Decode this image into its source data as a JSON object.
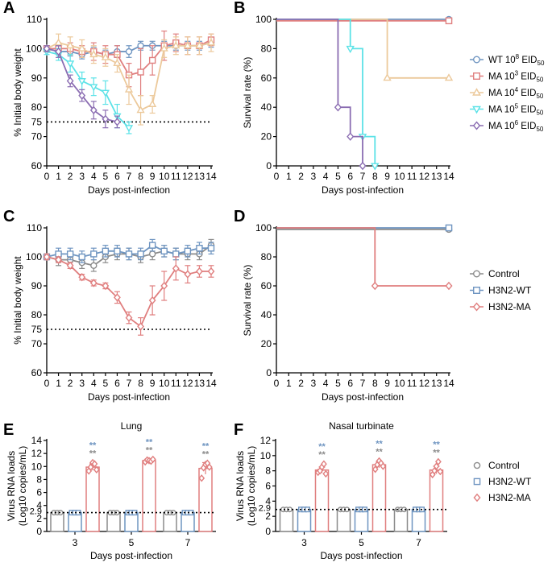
{
  "chart_data": [
    {
      "panel": "A",
      "type": "line",
      "xlabel": "Days post-infection",
      "ylabel": "% Initial body weight",
      "xlim": [
        0,
        14
      ],
      "ylim": [
        60,
        110
      ],
      "xticks": [
        "0",
        "1",
        "2",
        "3",
        "4",
        "5",
        "6",
        "7",
        "8",
        "9",
        "10",
        "11",
        "12",
        "13",
        "14"
      ],
      "yticks": [
        "60",
        "70",
        "80",
        "90",
        "100",
        "110"
      ],
      "reference_line": {
        "y": 75,
        "label": "75"
      },
      "series": [
        {
          "name": "WT 10^8 EID50",
          "color": "#6f95c1",
          "marker": "circle",
          "x": [
            0,
            1,
            2,
            3,
            4,
            5,
            6,
            7,
            8,
            9,
            10,
            11,
            12,
            13,
            14
          ],
          "values": [
            100,
            99,
            99,
            98,
            99,
            98,
            99,
            99,
            101,
            101,
            101,
            101,
            101,
            101,
            102
          ],
          "errors": [
            1,
            1,
            1.5,
            1.5,
            1.5,
            1.5,
            2,
            2,
            1.5,
            1.5,
            1.5,
            1.5,
            1.5,
            1.5,
            1.5
          ]
        },
        {
          "name": "MA 10^3 EID50",
          "color": "#e07f7f",
          "marker": "square",
          "x": [
            0,
            1,
            2,
            3,
            4,
            5,
            6,
            7,
            8,
            9,
            10,
            11,
            12,
            13,
            14
          ],
          "values": [
            100,
            100,
            100,
            99,
            99,
            98,
            98,
            91,
            92,
            96,
            101,
            102,
            101,
            101,
            103
          ],
          "errors": [
            1,
            2,
            2,
            2,
            3,
            3,
            3,
            4,
            8,
            5,
            5,
            3,
            3,
            3,
            2
          ]
        },
        {
          "name": "MA 10^4 EID50",
          "color": "#ecc99b",
          "marker": "triangle",
          "x": [
            0,
            1,
            2,
            3,
            4,
            5,
            6,
            7,
            8,
            9,
            10,
            11,
            12,
            13,
            14
          ],
          "values": [
            100,
            102,
            101,
            100,
            98,
            97,
            95,
            86,
            79,
            81,
            100,
            101,
            101,
            101,
            102
          ],
          "errors": [
            1,
            3,
            3,
            3,
            3,
            3,
            3,
            5,
            5,
            3,
            3,
            3,
            3,
            3,
            3
          ]
        },
        {
          "name": "MA 10^5 EID50",
          "color": "#5ce2e7",
          "marker": "triangle-down",
          "x": [
            0,
            1,
            2,
            3,
            4,
            5,
            6,
            7
          ],
          "values": [
            99,
            98,
            95,
            89,
            87,
            85,
            77,
            73
          ],
          "errors": [
            1,
            2,
            3,
            3,
            3,
            4,
            4,
            2
          ]
        },
        {
          "name": "MA 10^6 EID50",
          "color": "#8b6db2",
          "marker": "diamond",
          "x": [
            0,
            1,
            2,
            3,
            4,
            5,
            6
          ],
          "values": [
            100,
            99,
            89,
            84,
            79,
            76,
            75
          ],
          "errors": [
            1,
            2,
            2,
            2,
            3,
            3,
            2
          ]
        }
      ]
    },
    {
      "panel": "B",
      "type": "line",
      "xlabel": "Days post-infection",
      "ylabel": "Survival rate (%)",
      "xlim": [
        0,
        14
      ],
      "ylim": [
        0,
        100
      ],
      "step": true,
      "xticks": [
        "0",
        "1",
        "2",
        "3",
        "4",
        "5",
        "6",
        "7",
        "8",
        "9",
        "10",
        "11",
        "12",
        "13",
        "14"
      ],
      "yticks": [
        "0",
        "20",
        "40",
        "60",
        "80",
        "100"
      ],
      "series": [
        {
          "name": "WT 10^8 EID50",
          "color": "#6f95c1",
          "marker": "circle",
          "x": [
            14
          ],
          "values": [
            100
          ],
          "start": 100
        },
        {
          "name": "MA 10^3 EID50",
          "color": "#e07f7f",
          "marker": "square",
          "x": [
            14
          ],
          "values": [
            99
          ],
          "start": 99
        },
        {
          "name": "MA 10^4 EID50",
          "color": "#ecc99b",
          "marker": "triangle",
          "x": [
            9,
            14
          ],
          "values": [
            60,
            60
          ],
          "start": 100
        },
        {
          "name": "MA 10^5 EID50",
          "color": "#5ce2e7",
          "marker": "triangle-down",
          "x": [
            6,
            7,
            8
          ],
          "values": [
            80,
            20,
            0
          ],
          "start": 100
        },
        {
          "name": "MA 10^6 EID50",
          "color": "#8b6db2",
          "marker": "diamond",
          "x": [
            5,
            6,
            7
          ],
          "values": [
            40,
            20,
            0
          ],
          "start": 100
        }
      ]
    },
    {
      "panel": "C",
      "type": "line",
      "xlabel": "Days post-infection",
      "ylabel": "% Initial body weight",
      "xlim": [
        0,
        14
      ],
      "ylim": [
        60,
        110
      ],
      "xticks": [
        "0",
        "1",
        "2",
        "3",
        "4",
        "5",
        "6",
        "7",
        "8",
        "9",
        "10",
        "11",
        "12",
        "13",
        "14"
      ],
      "yticks": [
        "60",
        "70",
        "80",
        "90",
        "100",
        "110"
      ],
      "reference_line": {
        "y": 75,
        "label": "75"
      },
      "series": [
        {
          "name": "Control",
          "color": "#8b8b8b",
          "marker": "circle",
          "x": [
            0,
            1,
            2,
            3,
            4,
            5,
            6,
            7,
            8,
            9,
            10,
            11,
            12,
            13,
            14
          ],
          "values": [
            100,
            99,
            99,
            98,
            97,
            100,
            101,
            101,
            100,
            101,
            102,
            101,
            101,
            101,
            104
          ],
          "errors": [
            1,
            2,
            2,
            2,
            2,
            2,
            2,
            2,
            2,
            2,
            2,
            2,
            2,
            2,
            2
          ]
        },
        {
          "name": "H3N2-WT",
          "color": "#6f95c1",
          "marker": "square",
          "x": [
            0,
            1,
            2,
            3,
            4,
            5,
            6,
            7,
            8,
            9,
            10,
            11,
            12,
            13,
            14
          ],
          "values": [
            100,
            101,
            101,
            100,
            101,
            102,
            102,
            101,
            101,
            104,
            102,
            101,
            102,
            103,
            103
          ],
          "errors": [
            1,
            2,
            2,
            2,
            2,
            2,
            2,
            2,
            2,
            2,
            2,
            2,
            2,
            2,
            2
          ]
        },
        {
          "name": "H3N2-MA",
          "color": "#e07f7f",
          "marker": "diamond",
          "x": [
            0,
            1,
            2,
            3,
            4,
            5,
            6,
            7,
            8,
            9,
            10,
            11,
            12,
            13,
            14
          ],
          "values": [
            100,
            99,
            97,
            93,
            91,
            90,
            86,
            79,
            76,
            85,
            90,
            96,
            94,
            95,
            95
          ],
          "errors": [
            1,
            1,
            1,
            1,
            1,
            1,
            2,
            2,
            3,
            5,
            5,
            4,
            3,
            2,
            2
          ]
        }
      ]
    },
    {
      "panel": "D",
      "type": "line",
      "xlabel": "Days post-infection",
      "ylabel": "Survival rate (%)",
      "xlim": [
        0,
        14
      ],
      "ylim": [
        0,
        100
      ],
      "step": true,
      "xticks": [
        "0",
        "1",
        "2",
        "3",
        "4",
        "5",
        "6",
        "7",
        "8",
        "9",
        "10",
        "11",
        "12",
        "13",
        "14"
      ],
      "yticks": [
        "0",
        "20",
        "40",
        "60",
        "80",
        "100"
      ],
      "series": [
        {
          "name": "Control",
          "color": "#8b8b8b",
          "marker": "circle",
          "x": [
            14
          ],
          "values": [
            99
          ],
          "start": 99
        },
        {
          "name": "H3N2-WT",
          "color": "#6f95c1",
          "marker": "square",
          "x": [
            14
          ],
          "values": [
            100
          ],
          "start": 100
        },
        {
          "name": "H3N2-MA",
          "color": "#e07f7f",
          "marker": "diamond",
          "x": [
            8,
            14
          ],
          "values": [
            60,
            60
          ],
          "start": 100
        }
      ]
    },
    {
      "panel": "E",
      "type": "bar",
      "title": "Lung",
      "xlabel": "Days post-infection",
      "ylabel_line1": "Virus RNA loads",
      "ylabel_line2": "(Log10 copies/mL)",
      "categories": [
        "3",
        "5",
        "7"
      ],
      "ylim": [
        0,
        14
      ],
      "yticks": [
        "0",
        "2",
        "4",
        "6",
        "8",
        "10",
        "12",
        "14"
      ],
      "detection_limit": {
        "y": 2.9,
        "label": "2.9"
      },
      "significance_top": "**",
      "significance_bottom": "**",
      "series": [
        {
          "name": "Control",
          "color": "#8b8b8b",
          "marker": "circle",
          "values": [
            2.9,
            2.9,
            2.9
          ],
          "errors": [
            0,
            0,
            0
          ]
        },
        {
          "name": "H3N2-WT",
          "color": "#6f95c1",
          "marker": "square",
          "values": [
            2.9,
            2.9,
            2.9
          ],
          "errors": [
            0,
            0,
            0
          ]
        },
        {
          "name": "H3N2-MA",
          "color": "#e07f7f",
          "marker": "diamond",
          "values": [
            9.9,
            10.9,
            9.7
          ],
          "errors": [
            0.5,
            0.2,
            0.9
          ],
          "points": [
            [
              9.3,
              9.9,
              10.6,
              10.4,
              9.5
            ],
            [
              10.7,
              11.0,
              10.9,
              10.8,
              11.1
            ],
            [
              8.2,
              9.8,
              10.3,
              10.5,
              9.9
            ]
          ]
        }
      ]
    },
    {
      "panel": "F",
      "type": "bar",
      "title": "Nasal turbinate",
      "xlabel": "Days post-infection",
      "ylabel_line1": "Virus RNA loads",
      "ylabel_line2": "(Log10 copies/mL)",
      "categories": [
        "3",
        "5",
        "7"
      ],
      "ylim": [
        0,
        12
      ],
      "yticks": [
        "0",
        "2",
        "4",
        "6",
        "8",
        "10",
        "12"
      ],
      "detection_limit": {
        "y": 2.9,
        "label": "2.9"
      },
      "significance_top": "**",
      "significance_bottom": "**",
      "series": [
        {
          "name": "Control",
          "color": "#8b8b8b",
          "marker": "circle",
          "values": [
            2.9,
            2.9,
            2.9
          ],
          "errors": [
            0,
            0,
            0
          ]
        },
        {
          "name": "H3N2-WT",
          "color": "#6f95c1",
          "marker": "square",
          "values": [
            2.9,
            2.9,
            2.9
          ],
          "errors": [
            0,
            0,
            0
          ]
        },
        {
          "name": "H3N2-MA",
          "color": "#e07f7f",
          "marker": "diamond",
          "values": [
            8.1,
            8.8,
            8.1
          ],
          "errors": [
            0.4,
            0.4,
            0.5
          ],
          "points": [
            [
              7.8,
              8.0,
              8.5,
              8.9,
              7.6
            ],
            [
              8.2,
              8.8,
              9.3,
              9.0,
              8.6
            ],
            [
              7.5,
              8.0,
              8.6,
              9.2,
              7.9
            ]
          ]
        }
      ]
    }
  ],
  "panel_letters": [
    "A",
    "B",
    "C",
    "D",
    "E",
    "F"
  ],
  "legend_top": [
    {
      "name": "WT 10",
      "exp": "8",
      "unit": " EID",
      "sub": "50"
    },
    {
      "name": "MA 10",
      "exp": "3",
      "unit": " EID",
      "sub": "50"
    },
    {
      "name": "MA 10",
      "exp": "4",
      "unit": " EID",
      "sub": "50"
    },
    {
      "name": "MA 10",
      "exp": "5",
      "unit": " EID",
      "sub": "50"
    },
    {
      "name": "MA 10",
      "exp": "6",
      "unit": " EID",
      "sub": "50"
    }
  ],
  "legend_mid": [
    "Control",
    "H3N2-WT",
    "H3N2-MA"
  ],
  "legend_bottom": [
    "Control",
    "H3N2-WT",
    "H3N2-MA"
  ]
}
